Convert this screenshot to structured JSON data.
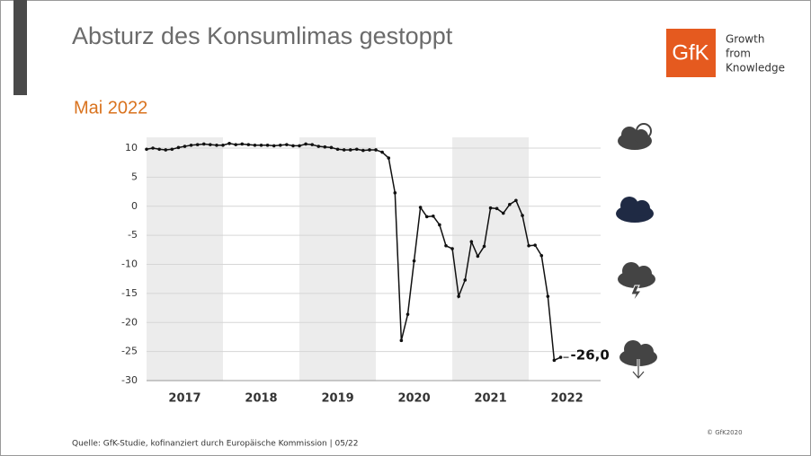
{
  "chart_data": {
    "type": "line",
    "title": "Absturz des Konsumlimas gestoppt",
    "subtitle": "Mai 2022",
    "x": [
      2017.0,
      2017.083,
      2017.167,
      2017.25,
      2017.333,
      2017.417,
      2017.5,
      2017.583,
      2017.667,
      2017.75,
      2017.833,
      2017.917,
      2018.0,
      2018.083,
      2018.167,
      2018.25,
      2018.333,
      2018.417,
      2018.5,
      2018.583,
      2018.667,
      2018.75,
      2018.833,
      2018.917,
      2019.0,
      2019.083,
      2019.167,
      2019.25,
      2019.333,
      2019.417,
      2019.5,
      2019.583,
      2019.667,
      2019.75,
      2019.833,
      2019.917,
      2020.0,
      2020.083,
      2020.167,
      2020.25,
      2020.333,
      2020.417,
      2020.5,
      2020.583,
      2020.667,
      2020.75,
      2020.833,
      2020.917,
      2021.0,
      2021.083,
      2021.167,
      2021.25,
      2021.333,
      2021.417,
      2021.5,
      2021.583,
      2021.667,
      2021.75,
      2021.833,
      2021.917,
      2022.0,
      2022.083,
      2022.167,
      2022.25,
      2022.333,
      2022.417
    ],
    "series": [
      {
        "color": "#111111",
        "values": [
          9.8,
          10.0,
          9.8,
          9.7,
          9.8,
          10.1,
          10.3,
          10.5,
          10.6,
          10.7,
          10.6,
          10.5,
          10.5,
          10.8,
          10.6,
          10.7,
          10.6,
          10.5,
          10.5,
          10.5,
          10.4,
          10.5,
          10.6,
          10.4,
          10.4,
          10.7,
          10.6,
          10.3,
          10.2,
          10.1,
          9.8,
          9.7,
          9.7,
          9.8,
          9.6,
          9.7,
          9.7,
          9.3,
          8.3,
          2.3,
          -23.1,
          -18.6,
          -9.4,
          -0.2,
          -1.8,
          -1.7,
          -3.2,
          -6.8,
          -7.3,
          -15.5,
          -12.7,
          -6.1,
          -8.6,
          -6.9,
          -0.3,
          -0.4,
          -1.2,
          0.3,
          1.0,
          -1.6,
          -6.8,
          -6.7,
          -8.5,
          -15.5,
          -26.5,
          -26.0
        ],
        "value_labels": [
          null,
          null,
          null,
          null,
          null,
          null,
          null,
          null,
          null,
          null,
          null,
          null,
          null,
          null,
          null,
          null,
          null,
          null,
          null,
          null,
          null,
          null,
          null,
          null,
          null,
          null,
          null,
          null,
          null,
          null,
          null,
          null,
          null,
          null,
          null,
          null,
          null,
          null,
          null,
          null,
          null,
          null,
          null,
          null,
          null,
          null,
          null,
          null,
          null,
          null,
          null,
          null,
          null,
          null,
          null,
          null,
          null,
          null,
          null,
          null,
          null,
          null,
          null,
          null,
          null,
          "-26,0"
        ]
      }
    ],
    "xlim": [
      2017.0,
      2022.94
    ],
    "xticks": [
      {
        "value": 2017.5,
        "label": "2017"
      },
      {
        "value": 2018.5,
        "label": "2018"
      },
      {
        "value": 2019.5,
        "label": "2019"
      },
      {
        "value": 2020.5,
        "label": "2020"
      },
      {
        "value": 2021.5,
        "label": "2021"
      },
      {
        "value": 2022.5,
        "label": "2022"
      }
    ],
    "shaded_bands": [
      [
        2017,
        2018
      ],
      [
        2019,
        2020
      ],
      [
        2021,
        2022
      ]
    ],
    "ylim": [
      -30,
      10
    ],
    "yticks": [
      10,
      5,
      0,
      -5,
      -10,
      -15,
      -20,
      -25,
      -30
    ],
    "grid": true
  },
  "slide": {
    "logo": "GfK",
    "tagline": [
      "Growth",
      "from",
      "Knowledge"
    ],
    "source": "Quelle: GfK-Studie, kofinanziert durch Europäische Kommission | 05/22",
    "copyright": "© GfK2020"
  }
}
